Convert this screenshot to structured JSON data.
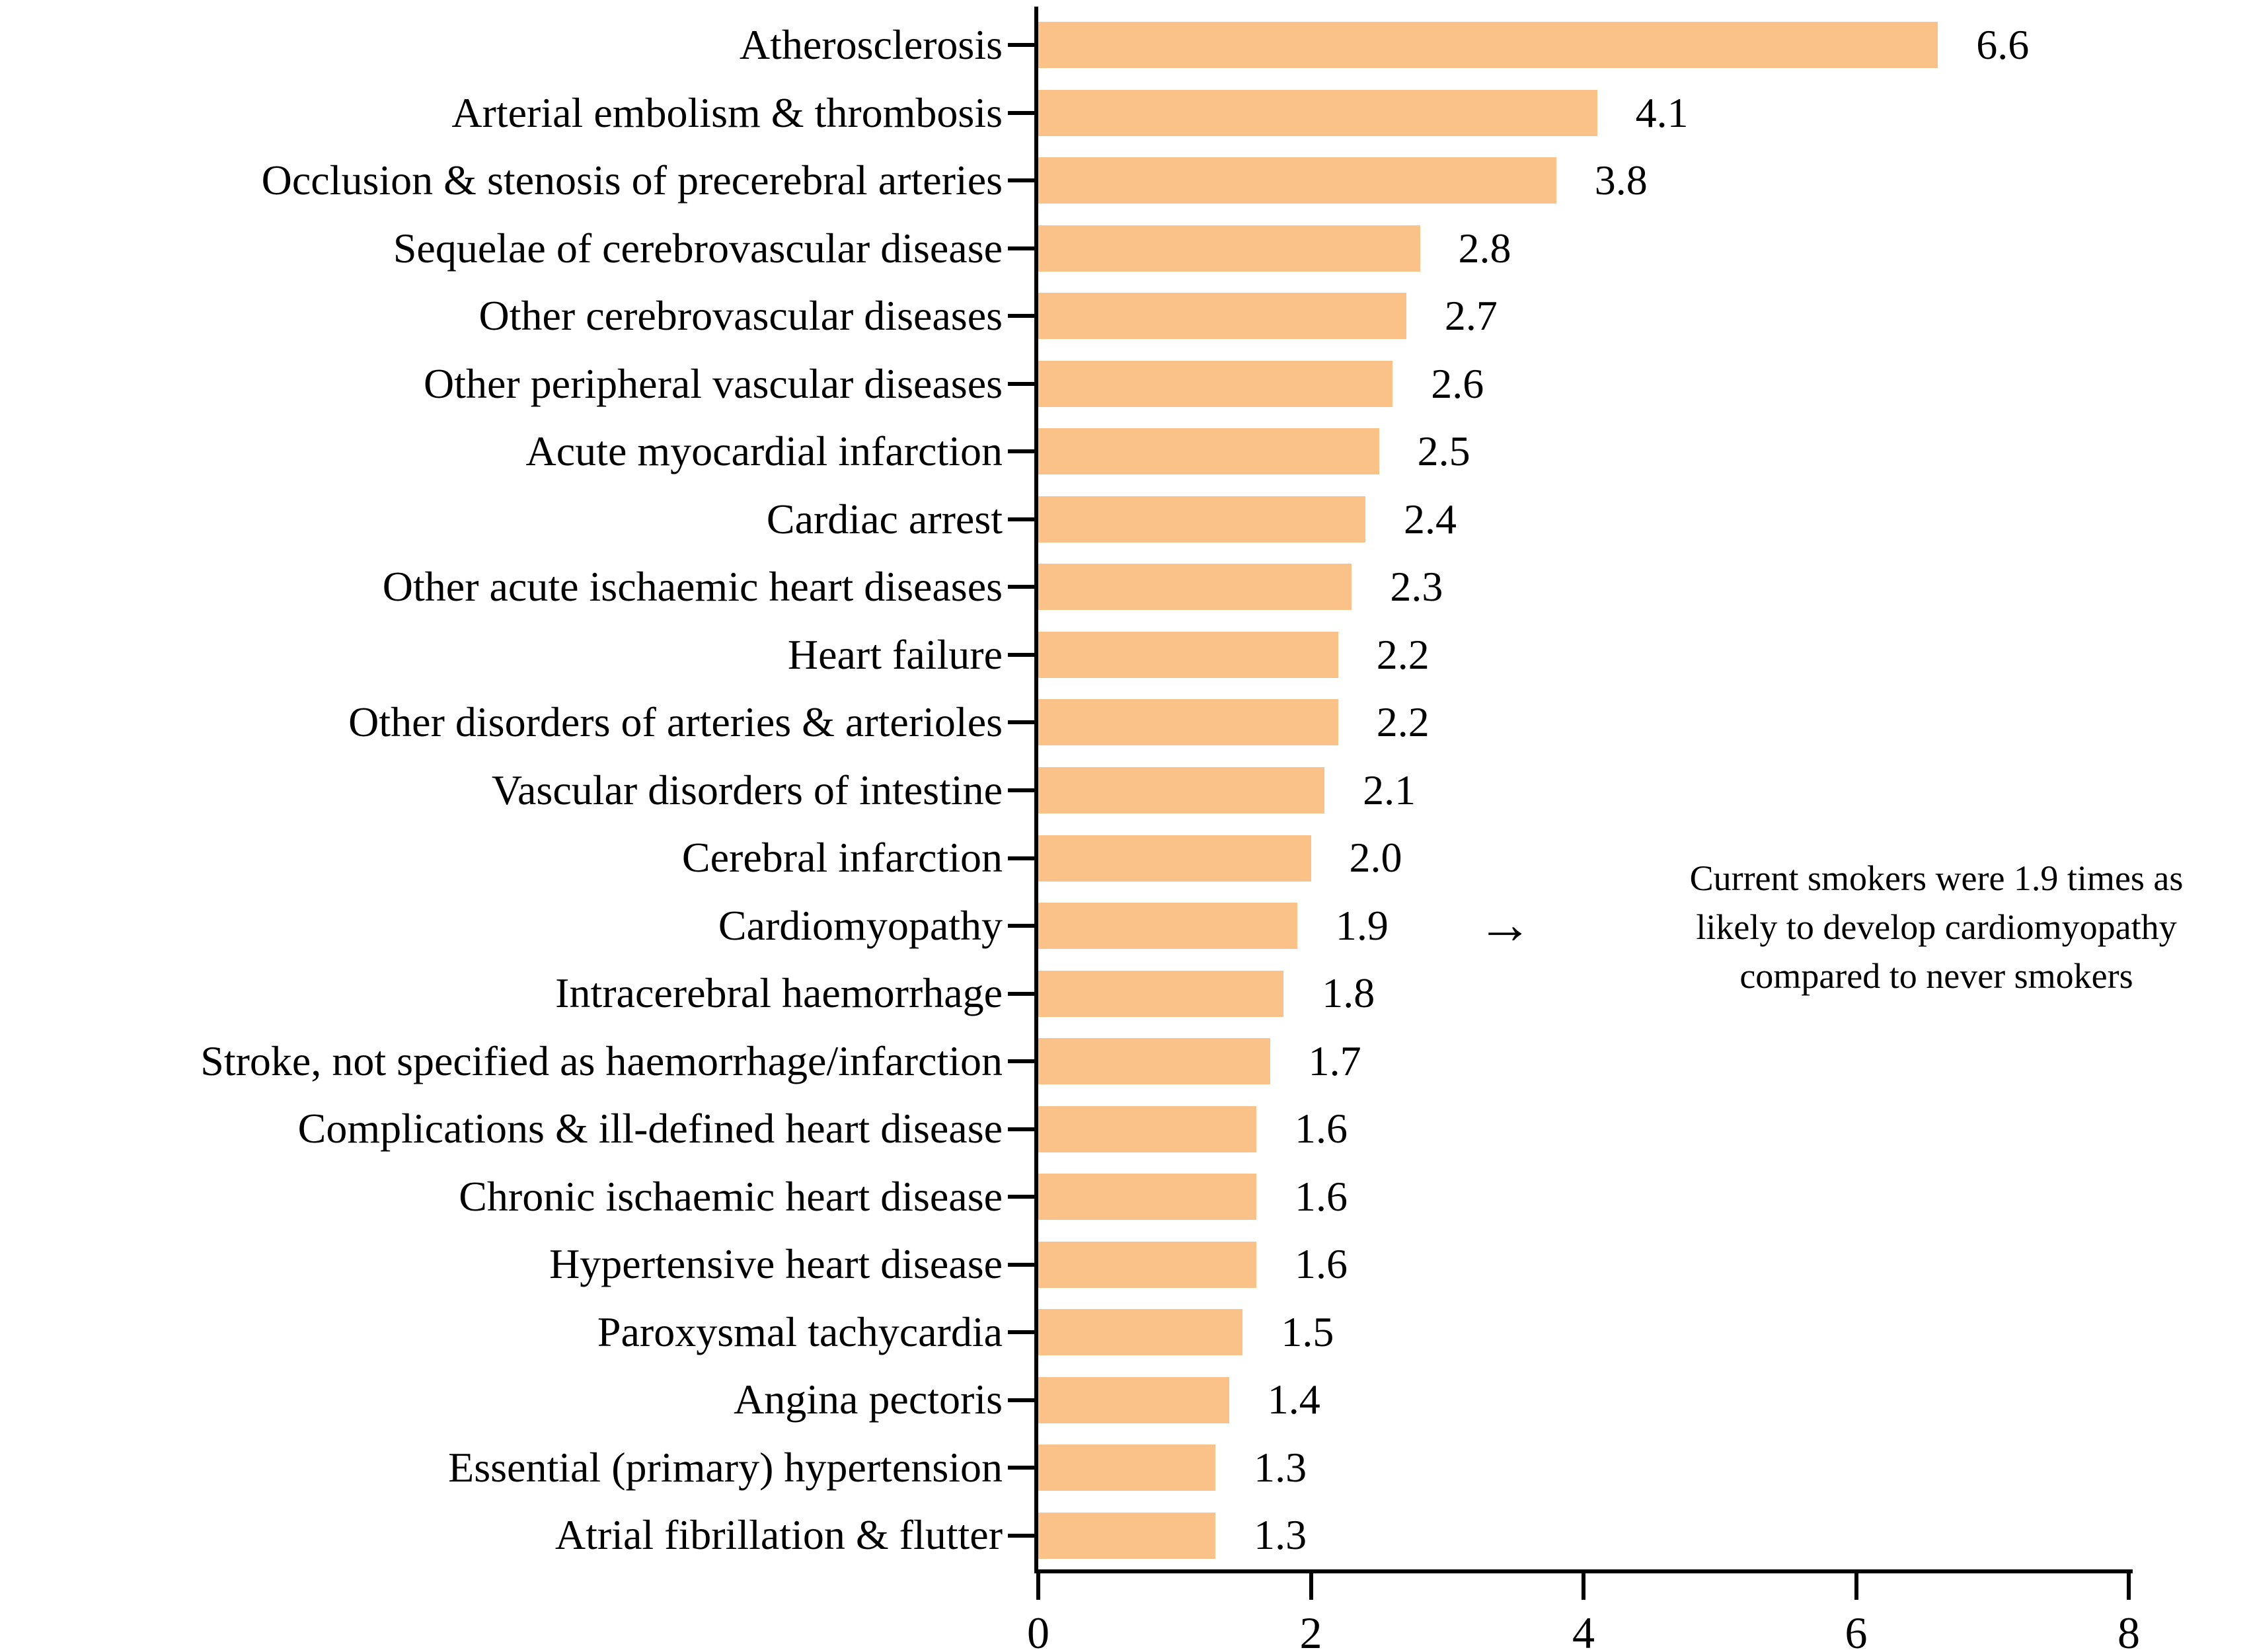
{
  "chart_data": {
    "type": "bar",
    "orientation": "horizontal",
    "title": "",
    "xlabel": "",
    "ylabel": "",
    "xlim": [
      0,
      8
    ],
    "x_ticks": [
      0,
      2,
      4,
      6,
      8
    ],
    "x_tick_labels": [
      "0",
      "2",
      "4",
      "6",
      "8"
    ],
    "grid": false,
    "bar_color": "#FAC189",
    "categories": [
      "Atherosclerosis",
      "Arterial embolism & thrombosis",
      "Occlusion & stenosis of precerebral arteries",
      "Sequelae of cerebrovascular disease",
      "Other cerebrovascular diseases",
      "Other peripheral vascular diseases",
      "Acute myocardial infarction",
      "Cardiac arrest",
      "Other acute ischaemic heart diseases",
      "Heart failure",
      "Other disorders of arteries & arterioles",
      "Vascular disorders of intestine",
      "Cerebral infarction",
      "Cardiomyopathy",
      "Intracerebral haemorrhage",
      "Stroke, not specified as haemorrhage/infarction",
      "Complications & ill-defined heart disease",
      "Chronic ischaemic heart disease",
      "Hypertensive heart disease",
      "Paroxysmal tachycardia",
      "Angina pectoris",
      "Essential (primary) hypertension",
      "Atrial fibrillation & flutter"
    ],
    "values": [
      6.6,
      4.1,
      3.8,
      2.8,
      2.7,
      2.6,
      2.5,
      2.4,
      2.3,
      2.2,
      2.2,
      2.1,
      2.0,
      1.9,
      1.8,
      1.7,
      1.6,
      1.6,
      1.6,
      1.5,
      1.4,
      1.3,
      1.3
    ],
    "value_labels": [
      "6.6",
      "4.1",
      "3.8",
      "2.8",
      "2.7",
      "2.6",
      "2.5",
      "2.4",
      "2.3",
      "2.2",
      "2.2",
      "2.1",
      "2.0",
      "1.9",
      "1.8",
      "1.7",
      "1.6",
      "1.6",
      "1.6",
      "1.5",
      "1.4",
      "1.3",
      "1.3"
    ],
    "annotation": {
      "arrow": "→",
      "target_category": "Cardiomyopathy",
      "lines": [
        "Current smokers were 1.9 times as",
        "likely to develop cardiomyopathy",
        "compared to never smokers"
      ]
    }
  }
}
